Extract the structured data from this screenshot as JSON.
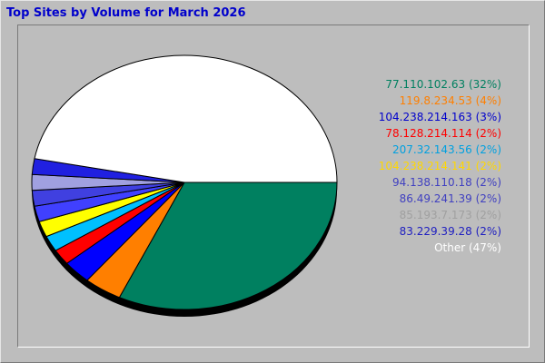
{
  "title": "Top Sites by Volume for March 2026",
  "chart_data": {
    "type": "pie",
    "title": "Top Sites by Volume for March 2026",
    "slices": [
      {
        "label": "77.110.102.63",
        "percent_label": "32%",
        "value": 32,
        "color": "#008060"
      },
      {
        "label": "119.8.234.53",
        "percent_label": "4%",
        "value": 4,
        "color": "#ff7f00"
      },
      {
        "label": "104.238.214.163",
        "percent_label": "3%",
        "value": 3,
        "color": "#0000ff"
      },
      {
        "label": "78.128.214.114",
        "percent_label": "2%",
        "value": 2,
        "color": "#ff0000"
      },
      {
        "label": "207.32.143.56",
        "percent_label": "2%",
        "value": 2,
        "color": "#00c0ff"
      },
      {
        "label": "104.238.214.141",
        "percent_label": "2%",
        "value": 2,
        "color": "#ffff00"
      },
      {
        "label": "94.138.110.18",
        "percent_label": "2%",
        "value": 2,
        "color": "#4040ff"
      },
      {
        "label": "86.49.241.39",
        "percent_label": "2%",
        "value": 2,
        "color": "#4040e0"
      },
      {
        "label": "85.193.7.173",
        "percent_label": "2%",
        "value": 2,
        "color": "#a0a0e0"
      },
      {
        "label": "83.229.39.28",
        "percent_label": "2%",
        "value": 2,
        "color": "#2020e0"
      },
      {
        "label": "Other",
        "percent_label": "47%",
        "value": 47,
        "color": "#ffffff"
      }
    ],
    "legend_text_colors": [
      "#008060",
      "#ff7f00",
      "#0000cc",
      "#ff0000",
      "#00a0e0",
      "#ffd700",
      "#4040c0",
      "#4040c0",
      "#a0a0a0",
      "#2020c0",
      "#ffffff"
    ]
  }
}
